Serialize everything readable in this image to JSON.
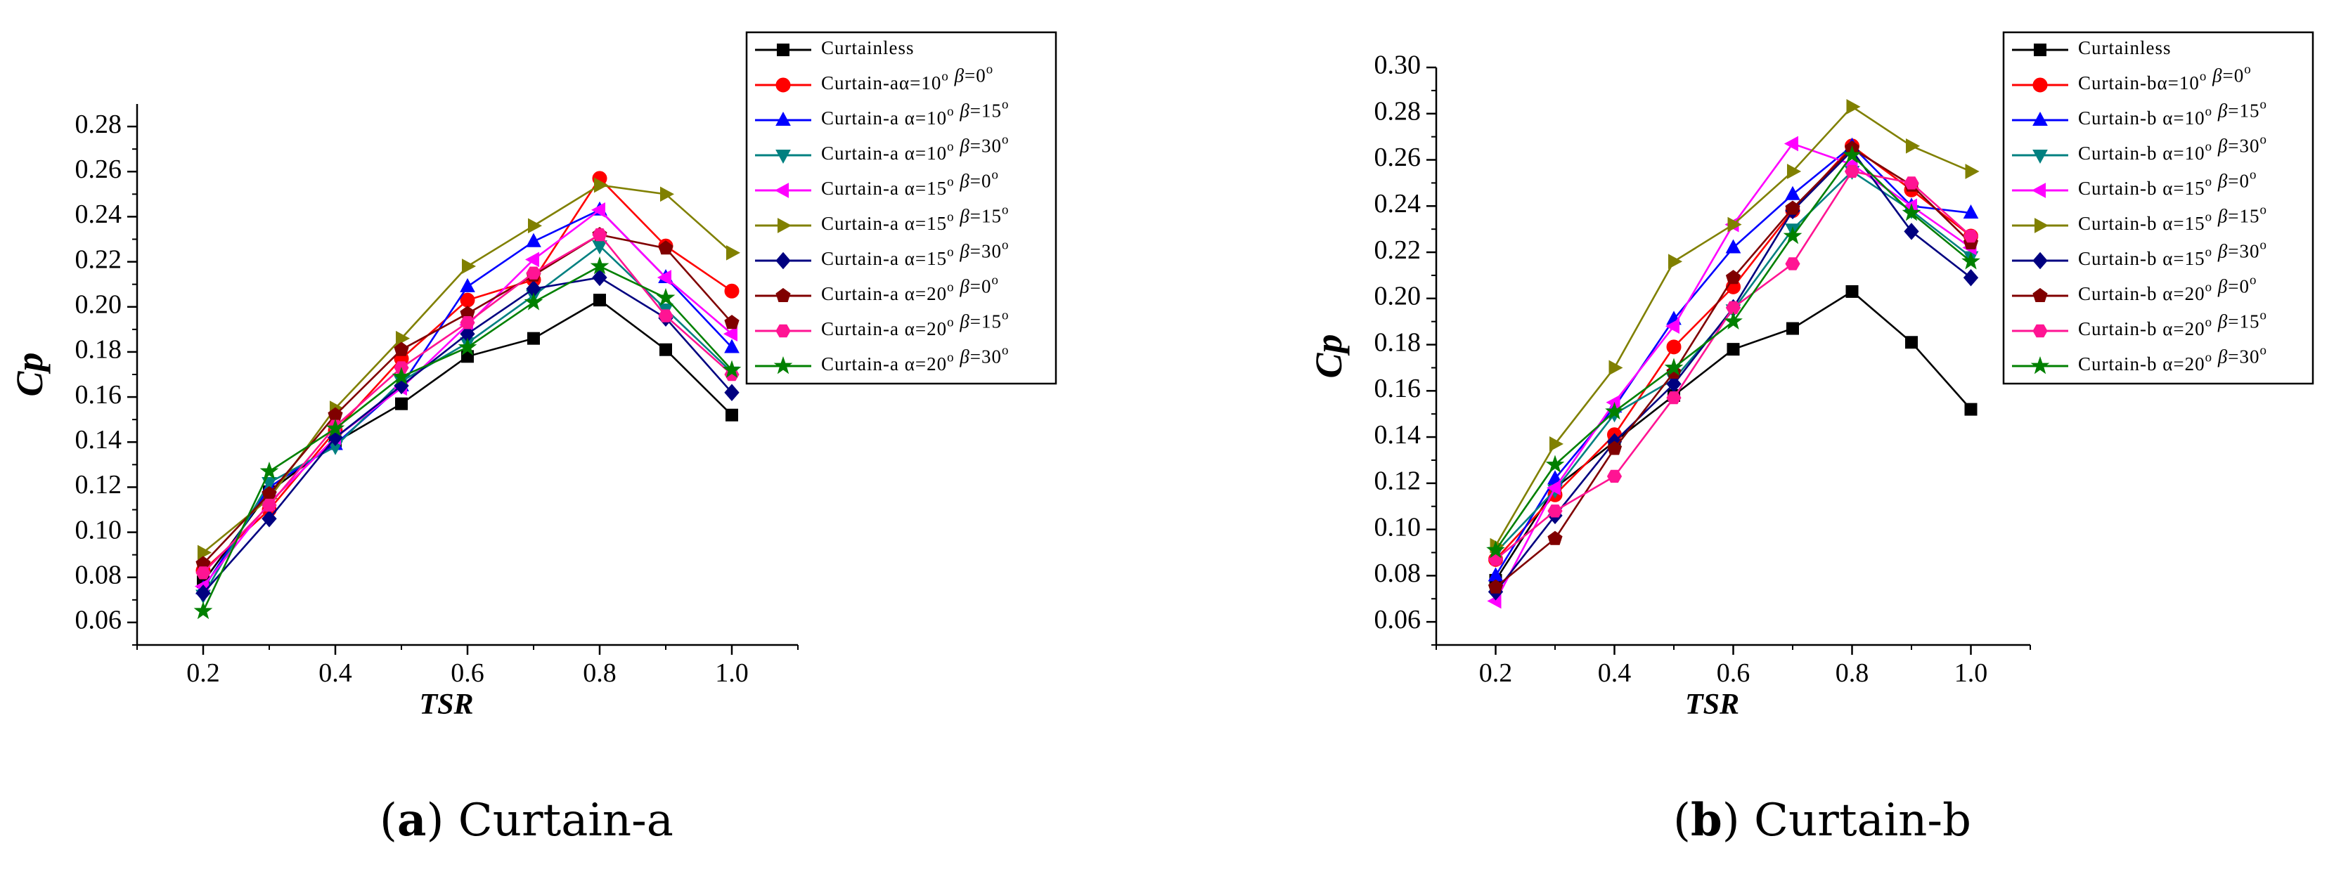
{
  "chart_data": [
    {
      "type": "line",
      "panel": "a",
      "xlabel": "TSR",
      "ylabel": "Cp",
      "xlim": [
        0.1,
        1.1
      ],
      "ylim": [
        0.05,
        0.29
      ],
      "xticks": [
        0.2,
        0.4,
        0.6,
        0.8,
        1.0
      ],
      "xtick_labels": [
        "0.2",
        "0.4",
        "0.6",
        "0.8",
        "1.0"
      ],
      "yticks": [
        0.06,
        0.08,
        0.1,
        0.12,
        0.14,
        0.16,
        0.18,
        0.2,
        0.22,
        0.24,
        0.26,
        0.28
      ],
      "ytick_labels": [
        "0.06",
        "0.08",
        "0.10",
        "0.12",
        "0.14",
        "0.16",
        "0.18",
        "0.20",
        "0.22",
        "0.24",
        "0.26",
        "0.28"
      ],
      "legend_position": "top-right",
      "x": [
        0.2,
        0.3,
        0.4,
        0.5,
        0.6,
        0.7,
        0.8,
        0.9,
        1.0
      ],
      "series": [
        {
          "name": "Curtainless",
          "color": "#000000",
          "marker": "square",
          "values": [
            0.078,
            0.118,
            0.14,
            0.157,
            0.178,
            0.186,
            0.203,
            0.181,
            0.152
          ]
        },
        {
          "name": "Curtain-aα=10° β=0°",
          "color": "#ff0000",
          "marker": "circle",
          "values": [
            0.083,
            0.11,
            0.145,
            0.177,
            0.203,
            0.212,
            0.257,
            0.227,
            0.207
          ]
        },
        {
          "name": "Curtain-a α=10° β=15°",
          "color": "#0000ff",
          "marker": "triangle-up",
          "values": [
            0.075,
            0.12,
            0.139,
            0.165,
            0.209,
            0.229,
            0.243,
            0.213,
            0.182
          ]
        },
        {
          "name": "Curtain-a α=10° β=30°",
          "color": "#008080",
          "marker": "triangle-down",
          "values": [
            0.072,
            0.122,
            0.138,
            0.167,
            0.184,
            0.205,
            0.227,
            0.199,
            0.171
          ]
        },
        {
          "name": "Curtain-a α=15° β=0°",
          "color": "#ff00ff",
          "marker": "triangle-left",
          "values": [
            0.076,
            0.113,
            0.142,
            0.164,
            0.192,
            0.221,
            0.243,
            0.213,
            0.188
          ]
        },
        {
          "name": "Curtain-a α=15° β=15°",
          "color": "#808000",
          "marker": "triangle-right",
          "values": [
            0.091,
            0.115,
            0.155,
            0.186,
            0.218,
            0.236,
            0.254,
            0.25,
            0.224
          ]
        },
        {
          "name": "Curtain-a α=15° β=30°",
          "color": "#000080",
          "marker": "diamond",
          "values": [
            0.073,
            0.106,
            0.142,
            0.165,
            0.188,
            0.208,
            0.213,
            0.195,
            0.162
          ]
        },
        {
          "name": "Curtain-a α=20° β=0°",
          "color": "#800000",
          "marker": "pentagon",
          "values": [
            0.086,
            0.117,
            0.152,
            0.181,
            0.197,
            0.214,
            0.232,
            0.226,
            0.193
          ]
        },
        {
          "name": "Curtain-a α=20° β=15°",
          "color": "#ff1493",
          "marker": "hexagon",
          "values": [
            0.082,
            0.112,
            0.147,
            0.173,
            0.193,
            0.215,
            0.232,
            0.196,
            0.17
          ]
        },
        {
          "name": "Curtain-a α=20° β=30°",
          "color": "#008000",
          "marker": "star",
          "values": [
            0.065,
            0.127,
            0.146,
            0.169,
            0.182,
            0.202,
            0.218,
            0.204,
            0.172
          ]
        }
      ]
    },
    {
      "type": "line",
      "panel": "b",
      "xlabel": "TSR",
      "ylabel": "Cp",
      "xlim": [
        0.1,
        1.1
      ],
      "ylim": [
        0.05,
        0.3
      ],
      "xticks": [
        0.2,
        0.4,
        0.6,
        0.8,
        1.0
      ],
      "xtick_labels": [
        "0.2",
        "0.4",
        "0.6",
        "0.8",
        "1.0"
      ],
      "yticks": [
        0.06,
        0.08,
        0.1,
        0.12,
        0.14,
        0.16,
        0.18,
        0.2,
        0.22,
        0.24,
        0.26,
        0.28,
        0.3
      ],
      "ytick_labels": [
        "0.06",
        "0.08",
        "0.10",
        "0.12",
        "0.14",
        "0.16",
        "0.18",
        "0.20",
        "0.22",
        "0.24",
        "0.26",
        "0.28",
        "0.30"
      ],
      "legend_position": "top-right",
      "x": [
        0.2,
        0.3,
        0.4,
        0.5,
        0.6,
        0.7,
        0.8,
        0.9,
        1.0
      ],
      "series": [
        {
          "name": "Curtainless",
          "color": "#000000",
          "marker": "square",
          "values": [
            0.078,
            0.118,
            0.138,
            0.158,
            0.178,
            0.187,
            0.203,
            0.181,
            0.152
          ]
        },
        {
          "name": "Curtain-bα=10° β=0°",
          "color": "#ff0000",
          "marker": "circle",
          "values": [
            0.087,
            0.115,
            0.141,
            0.179,
            0.205,
            0.238,
            0.266,
            0.247,
            0.227
          ]
        },
        {
          "name": "Curtain-b α=10° β=15°",
          "color": "#0000ff",
          "marker": "triangle-up",
          "values": [
            0.08,
            0.122,
            0.153,
            0.191,
            0.222,
            0.245,
            0.266,
            0.24,
            0.237
          ]
        },
        {
          "name": "Curtain-b α=10° β=30°",
          "color": "#008080",
          "marker": "triangle-down",
          "values": [
            0.09,
            0.117,
            0.15,
            0.165,
            0.195,
            0.23,
            0.255,
            0.238,
            0.218
          ]
        },
        {
          "name": "Curtain-b α=15° β=0°",
          "color": "#ff00ff",
          "marker": "triangle-left",
          "values": [
            0.069,
            0.118,
            0.155,
            0.188,
            0.232,
            0.267,
            0.258,
            0.24,
            0.222
          ]
        },
        {
          "name": "Curtain-b α=15° β=15°",
          "color": "#808000",
          "marker": "triangle-right",
          "values": [
            0.093,
            0.137,
            0.17,
            0.216,
            0.232,
            0.255,
            0.283,
            0.266,
            0.255
          ]
        },
        {
          "name": "Curtain-b α=15° β=30°",
          "color": "#000080",
          "marker": "diamond",
          "values": [
            0.073,
            0.106,
            0.138,
            0.163,
            0.196,
            0.238,
            0.264,
            0.229,
            0.209
          ]
        },
        {
          "name": "Curtain-b α=20° β=0°",
          "color": "#800000",
          "marker": "pentagon",
          "values": [
            0.075,
            0.096,
            0.135,
            0.168,
            0.209,
            0.239,
            0.265,
            0.249,
            0.224
          ]
        },
        {
          "name": "Curtain-b α=20° β=15°",
          "color": "#ff1493",
          "marker": "hexagon",
          "values": [
            0.087,
            0.108,
            0.123,
            0.157,
            0.196,
            0.215,
            0.255,
            0.25,
            0.227
          ]
        },
        {
          "name": "Curtain-b α=20° β=30°",
          "color": "#008000",
          "marker": "star",
          "values": [
            0.091,
            0.128,
            0.151,
            0.17,
            0.19,
            0.227,
            0.262,
            0.237,
            0.216
          ]
        }
      ]
    }
  ],
  "captions": {
    "a": {
      "letter": "a",
      "text": " Curtain-a"
    },
    "b": {
      "letter": "b",
      "text": " Curtain-b"
    }
  }
}
